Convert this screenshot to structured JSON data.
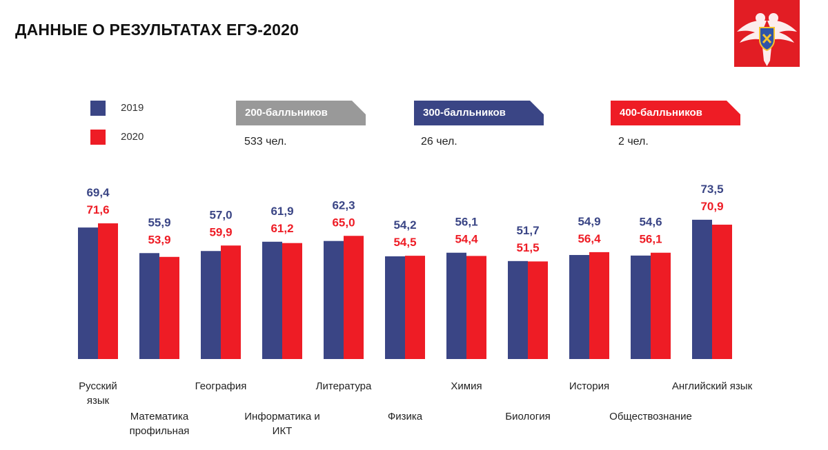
{
  "header": {
    "title": "ДАННЫЕ О РЕЗУЛЬТАТАХ ЕГЭ-2020"
  },
  "colors": {
    "y2019": "#3a4585",
    "y2020": "#ee1c25",
    "gray": "#999999",
    "emblem": "#e21d24"
  },
  "legend": [
    {
      "label": "2019"
    },
    {
      "label": "2020"
    }
  ],
  "badges": [
    {
      "label": "200-балльников",
      "count": "533 чел."
    },
    {
      "label": "300-балльников",
      "count": "26 чел."
    },
    {
      "label": "400-балльников",
      "count": "2 чел."
    }
  ],
  "chart_data": {
    "type": "bar",
    "title": "",
    "xlabel": "",
    "ylabel": "",
    "ylim": [
      0,
      80
    ],
    "grid": false,
    "categories": [
      [
        "Русский",
        "язык"
      ],
      [
        "Математика",
        "профильная"
      ],
      [
        "География"
      ],
      [
        "Информатика и",
        "ИКТ"
      ],
      [
        "Литература"
      ],
      [
        "Физика"
      ],
      [
        "Химия"
      ],
      [
        "Биология"
      ],
      [
        "История"
      ],
      [
        "Обществознание"
      ],
      [
        "Английский язык"
      ]
    ],
    "series": [
      {
        "name": "2019",
        "values": [
          69.4,
          55.9,
          57.0,
          61.9,
          62.3,
          54.2,
          56.1,
          51.7,
          54.9,
          54.6,
          73.5
        ],
        "labels": [
          "69,4",
          "55,9",
          "57,0",
          "61,9",
          "62,3",
          "54,2",
          "56,1",
          "51,7",
          "54,9",
          "54,6",
          "73,5"
        ]
      },
      {
        "name": "2020",
        "values": [
          71.6,
          53.9,
          59.9,
          61.2,
          65.0,
          54.5,
          54.4,
          51.5,
          56.4,
          56.1,
          70.9
        ],
        "labels": [
          "71,6",
          "53,9",
          "59,9",
          "61,2",
          "65,0",
          "54,5",
          "54,4",
          "51,5",
          "56,4",
          "56,1",
          "70,9"
        ]
      }
    ]
  }
}
